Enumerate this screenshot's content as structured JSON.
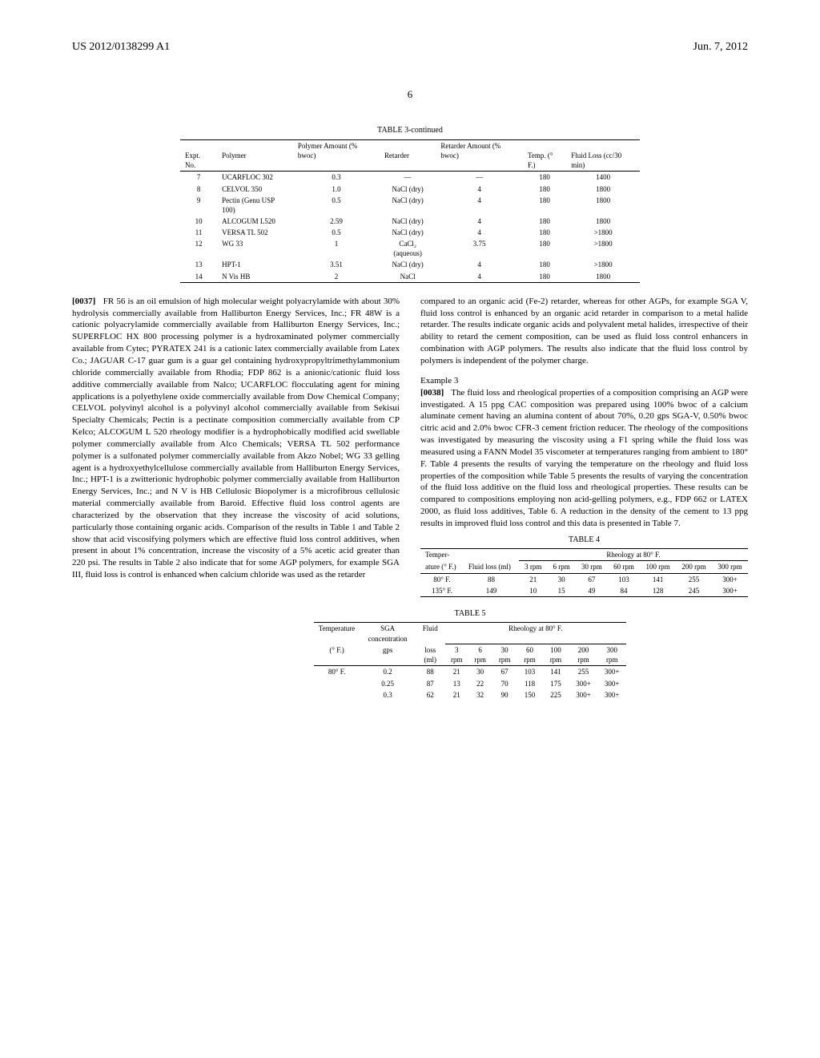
{
  "header": {
    "pub_no": "US 2012/0138299 A1",
    "date": "Jun. 7, 2012"
  },
  "page_number": "6",
  "table3": {
    "title": "TABLE 3-continued",
    "columns": [
      "Expt. No.",
      "Polymer",
      "Polymer Amount (% bwoc)",
      "Retarder",
      "Retarder Amount (% bwoc)",
      "Temp. (° F.)",
      "Fluid Loss (cc/30 min)"
    ],
    "rows": [
      [
        "7",
        "UCARFLOC 302",
        "0.3",
        "—",
        "—",
        "180",
        "1400"
      ],
      [
        "8",
        "CELVOL 350",
        "1.0",
        "NaCl (dry)",
        "4",
        "180",
        "1800"
      ],
      [
        "9",
        "Pectin (Genu USP 100)",
        "0.5",
        "NaCl (dry)",
        "4",
        "180",
        "1800"
      ],
      [
        "10",
        "ALCOGUM L520",
        "2.59",
        "NaCl (dry)",
        "4",
        "180",
        "1800"
      ],
      [
        "11",
        "VERSA TL 502",
        "0.5",
        "NaCl (dry)",
        "4",
        "180",
        ">1800"
      ],
      [
        "12",
        "WG 33",
        "1",
        "CaCl₂ (aqueous)",
        "3.75",
        "180",
        ">1800"
      ],
      [
        "13",
        "HPT-1",
        "3.51",
        "NaCl (dry)",
        "4",
        "180",
        ">1800"
      ],
      [
        "14",
        "N Vis HB",
        "2",
        "NaCl",
        "4",
        "180",
        "1800"
      ]
    ]
  },
  "para37_num": "[0037]",
  "para37": "FR 56 is an oil emulsion of high molecular weight polyacrylamide with about 30% hydrolysis commercially available from Halliburton Energy Services, Inc.; FR 48W is a cationic polyacrylamide commercially available from Halliburton Energy Services, Inc.; SUPERFLOC HX 800 processing polymer is a hydroxaminated polymer commercially available from Cytec; PYRATEX 241 is a cationic latex commercially available from Latex Co.; JAGUAR C-17 guar gum is a guar gel containing hydroxypropyltrimethylammonium chloride commercially available from Rhodia; FDP 862 is a anionic/cationic fluid loss additive commercially available from Nalco; UCARFLOC flocculating agent for mining applications is a polyethylene oxide commercially available from Dow Chemical Company; CELVOL polyvinyl alcohol is a polyvinyl alcohol commercially available from Sekisui Specialty Chemicals; Pectin is a pectinate composition commercially available from CP Kelco; ALCOGUM L 520 rheology modifier is a hydrophobically modified acid swellable polymer commercially available from Alco Chemicals; VERSA TL 502 performance polymer is a sulfonated polymer commercially available from Akzo Nobel; WG 33 gelling agent is a hydroxyethylcellulose commercially available from Halliburton Energy Services, Inc.; HPT-1 is a zwitterionic hydrophobic polymer commercially available from Halliburton Energy Services, Inc.; and N V is HB Cellulosic Biopolymer is a microfibrous cellulosic material commercially available from Baroid. Effective fluid loss control agents are characterized by the observation that they increase the viscosity of acid solutions, particularly those containing organic acids. Comparison of the results in Table 1 and Table 2 show that acid viscosifying polymers which are effective fluid loss control additives, when present in about 1% concentration, increase the viscosity of a 5% acetic acid greater than 220 psi. The results in Table 2 also indicate that for some AGP polymers, for example SGA III, fluid loss is control is enhanced when calcium chloride was used as the retarder",
  "para37b": "compared to an organic acid (Fe-2) retarder, whereas for other AGPs, for example SGA V, fluid loss control is enhanced by an organic acid retarder in comparison to a metal halide retarder. The results indicate organic acids and polyvalent metal halides, irrespective of their ability to retard the cement composition, can be used as fluid loss control enhancers in combination with AGP polymers. The results also indicate that the fluid loss control by polymers is independent of the polymer charge.",
  "example3_heading": "Example 3",
  "para38_num": "[0038]",
  "para38": "The fluid loss and rheological properties of a composition comprising an AGP were investigated. A 15 ppg CAC composition was prepared using 100% bwoc of a calcium aluminate cement having an alumina content of about 70%, 0.20 gps SGA-V, 0.50% bwoc citric acid and 2.0% bwoc CFR-3 cement friction reducer. The rheology of the compositions was investigated by measuring the viscosity using a F1 spring while the fluid loss was measured using a FANN Model 35 viscometer at temperatures ranging from ambient to 180° F. Table 4 presents the results of varying the temperature on the rheology and fluid loss properties of the composition while Table 5 presents the results of varying the concentration of the fluid loss additive on the fluid loss and rheological properties. These results can be compared to compositions employing non acid-gelling polymers, e.g., FDP 662 or LATEX 2000, as fluid loss additives, Table 6. A reduction in the density of the cement to 13 ppg results in improved fluid loss control and this data is presented in Table 7.",
  "table4": {
    "title": "TABLE 4",
    "group": "Rheology at 80° F.",
    "head1": [
      "Temper-",
      "",
      "",
      "",
      "",
      "",
      "",
      "",
      ""
    ],
    "head2": [
      "ature (° F.)",
      "Fluid loss (ml)",
      "3 rpm",
      "6 rpm",
      "30 rpm",
      "60 rpm",
      "100 rpm",
      "200 rpm",
      "300 rpm"
    ],
    "rows": [
      [
        "80° F.",
        "88",
        "21",
        "30",
        "67",
        "103",
        "141",
        "255",
        "300+"
      ],
      [
        "135° F.",
        "149",
        "10",
        "15",
        "49",
        "84",
        "128",
        "245",
        "300+"
      ]
    ]
  },
  "table5": {
    "title": "TABLE 5",
    "group": "Rheology at 80° F.",
    "head1": [
      "Temperature",
      "SGA concentration",
      "Fluid"
    ],
    "head2": [
      "(° F.)",
      "gps",
      "loss (ml)",
      "3 rpm",
      "6 rpm",
      "30 rpm",
      "60 rpm",
      "100 rpm",
      "200 rpm",
      "300 rpm"
    ],
    "rows": [
      [
        "80° F.",
        "0.2",
        "88",
        "21",
        "30",
        "67",
        "103",
        "141",
        "255",
        "300+"
      ],
      [
        "",
        "0.25",
        "87",
        "13",
        "22",
        "70",
        "118",
        "175",
        "300+",
        "300+"
      ],
      [
        "",
        "0.3",
        "62",
        "21",
        "32",
        "90",
        "150",
        "225",
        "300+",
        "300+"
      ]
    ]
  }
}
